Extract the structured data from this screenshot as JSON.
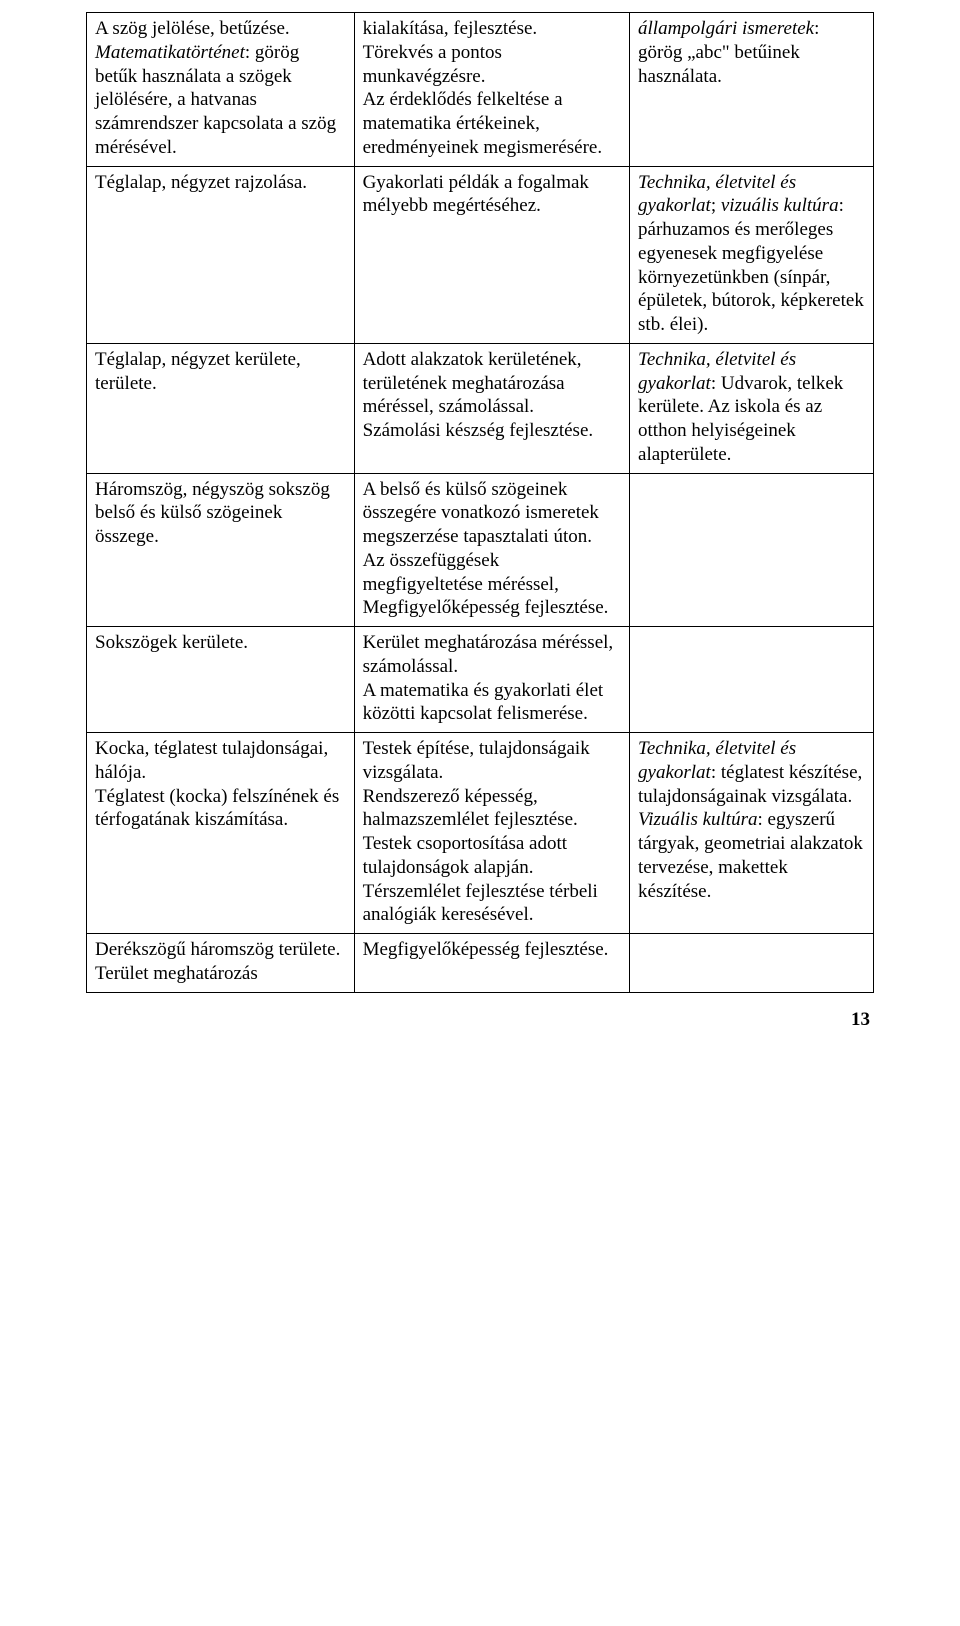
{
  "rows": [
    {
      "c1": [
        {
          "t": "A szög jelölése, betűzése."
        },
        {
          "runs": [
            {
              "t": "Matematikatörténet",
              "em": true
            },
            {
              "t": ": görög betűk használata a szögek jelölésére, a hatvanas számrendszer kapcsolata a szög mérésével."
            }
          ]
        }
      ],
      "c2": [
        {
          "t": "kialakítása, fejlesztése."
        },
        {
          "t": "Törekvés a pontos munkavégzésre."
        },
        {
          "t": "Az érdeklődés felkeltése a matematika értékeinek, eredményeinek megismerésére."
        }
      ],
      "c3": [
        {
          "runs": [
            {
              "t": "állampolgári ismeretek",
              "em": true
            },
            {
              "t": ": görög „abc\" betűinek használata."
            }
          ]
        }
      ]
    },
    {
      "c1": [
        {
          "t": "Téglalap, négyzet rajzolása."
        }
      ],
      "c2": [
        {
          "t": "Gyakorlati példák a fogalmak mélyebb megértéséhez."
        }
      ],
      "c3": [
        {
          "runs": [
            {
              "t": "Technika, életvitel és gyakorlat",
              "em": true
            },
            {
              "t": "; "
            },
            {
              "t": "vizuális kultúra",
              "em": true
            },
            {
              "t": ": párhuzamos és merőleges egyenesek megfigyelése környezetünkben (sínpár, épületek, bútorok, képkeretek stb. élei)."
            }
          ]
        }
      ]
    },
    {
      "c1": [
        {
          "t": "Téglalap, négyzet kerülete, területe."
        }
      ],
      "c2": [
        {
          "t": "Adott alakzatok kerületének, területének meghatározása méréssel, számolással."
        },
        {
          "t": "Számolási készség fejlesztése."
        }
      ],
      "c3": [
        {
          "runs": [
            {
              "t": "Technika, életvitel és gyakorlat",
              "em": true
            },
            {
              "t": ": Udvarok, telkek kerülete. Az iskola és az otthon helyiségeinek alapterülete."
            }
          ]
        }
      ]
    },
    {
      "c1": [
        {
          "t": "Háromszög, négyszög sokszög belső és külső szögeinek összege."
        }
      ],
      "c2": [
        {
          "t": "A belső és külső szögeinek összegére vonatkozó ismeretek megszerzése tapasztalati úton."
        },
        {
          "t": "Az összefüggések megfigyeltetése méréssel,"
        },
        {
          "t": "Megfigyelőképesség fejlesztése."
        }
      ],
      "c3": []
    },
    {
      "c1": [
        {
          "t": "Sokszögek kerülete."
        }
      ],
      "c2": [
        {
          "t": "Kerület meghatározása méréssel, számolással."
        },
        {
          "t": "A matematika és gyakorlati élet közötti kapcsolat felismerése."
        }
      ],
      "c3": []
    },
    {
      "c1": [
        {
          "t": "Kocka, téglatest tulajdonságai, hálója."
        },
        {
          "t": "Téglatest (kocka) felszínének és térfogatának kiszámítása."
        }
      ],
      "c2": [
        {
          "t": "Testek építése, tulajdonságaik vizsgálata."
        },
        {
          "t": "Rendszerező képesség, halmazszemlélet fejlesztése."
        },
        {
          "t": "Testek csoportosítása adott tulajdonságok alapján."
        },
        {
          "t": "Térszemlélet fejlesztése térbeli analógiák keresésével."
        }
      ],
      "c3": [
        {
          "runs": [
            {
              "t": "Technika, életvitel és gyakorlat",
              "em": true
            },
            {
              "t": ": téglatest készítése, tulajdonságainak vizsgálata."
            }
          ]
        },
        {
          "t": " "
        },
        {
          "runs": [
            {
              "t": "Vizuális kultúra",
              "em": true
            },
            {
              "t": ": egyszerű tárgyak, geometriai alakzatok tervezése, makettek készítése."
            }
          ]
        }
      ]
    },
    {
      "c1": [
        {
          "t": "Derékszögű háromszög területe."
        },
        {
          "t": "Terület meghatározás"
        }
      ],
      "c2": [
        {
          "t": "Megfigyelőképesség fejlesztése."
        }
      ],
      "c3": []
    }
  ],
  "pageNumber": "13"
}
